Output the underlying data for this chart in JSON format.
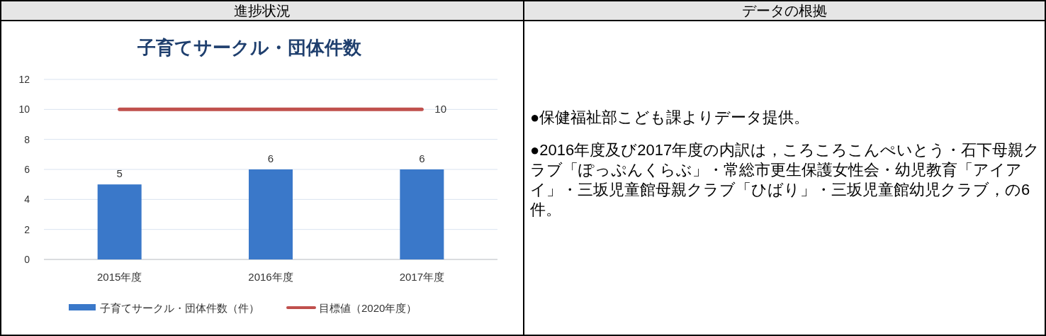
{
  "chart_data": {
    "type": "bar",
    "title": "子育てサークル・団体件数",
    "categories": [
      "2015年度",
      "2016年度",
      "2017年度"
    ],
    "series": [
      {
        "name": "子育てサークル・団体件数（件）",
        "color": "#3a78c9",
        "values": [
          5,
          6,
          6
        ],
        "value_labels": [
          "5",
          "6",
          "6"
        ]
      },
      {
        "name": "目標値（2020年度）",
        "type": "line",
        "color": "#c0504d",
        "values": [
          10,
          10,
          10
        ],
        "value_labels": [
          null,
          null,
          "10"
        ]
      }
    ],
    "ylim": [
      0,
      12
    ],
    "yticks": [
      0,
      2,
      4,
      6,
      8,
      10,
      12
    ],
    "grid": "y",
    "legend": "bottom",
    "annotations": [
      "進捗状況",
      "データの根拠",
      "●保健福祉部こども課よりデータ提供。",
      "●2016年度及び2017年度の内訳は，ころころこんぺいとう・石下母親クラブ「ぽっぷんくらぶ」・常総市更生保護女性会・幼児教育「アイアイ」・三坂児童館母親クラブ「ひばり」・三坂児童館幼児クラブ，の6件。"
    ]
  }
}
